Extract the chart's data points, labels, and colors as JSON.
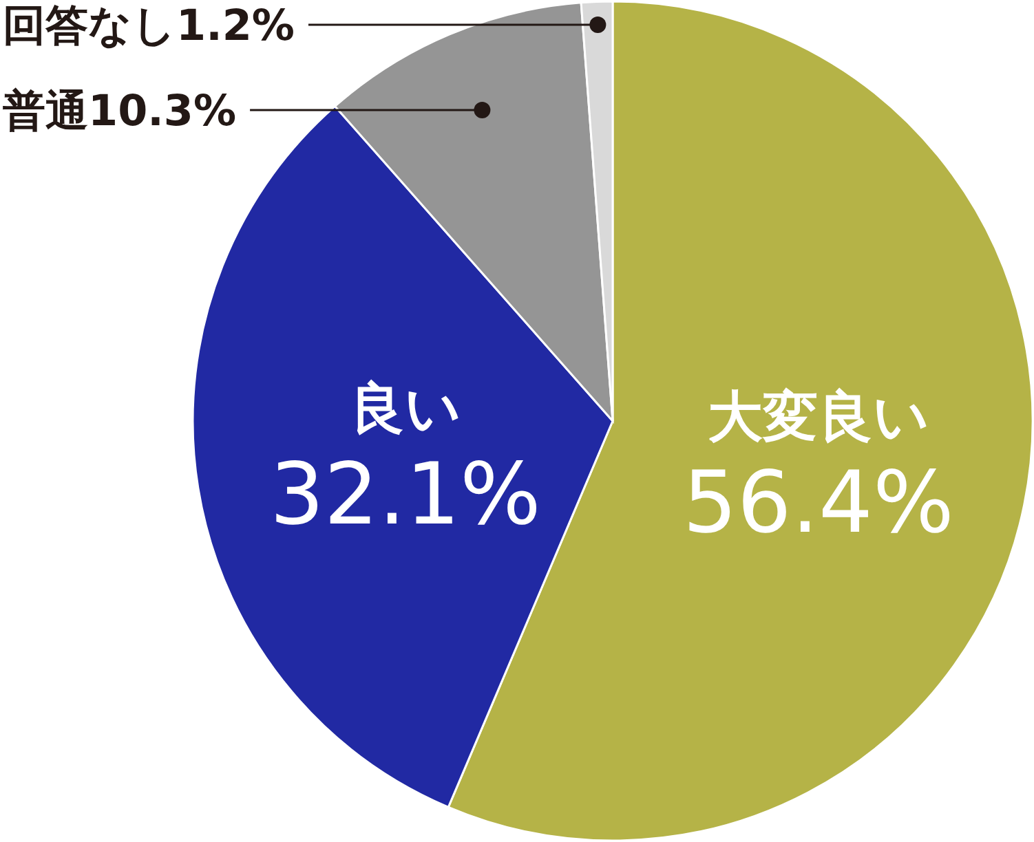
{
  "chart_data": {
    "type": "pie",
    "categories": [
      "大変良い",
      "良い",
      "普通",
      "回答なし"
    ],
    "values": [
      56.4,
      32.1,
      10.3,
      1.2
    ],
    "value_labels": [
      "56.4%",
      "32.1%",
      "10.3%",
      "1.2%"
    ],
    "colors": [
      "#b5b347",
      "#2129a3",
      "#959595",
      "#d9d9d9"
    ]
  }
}
